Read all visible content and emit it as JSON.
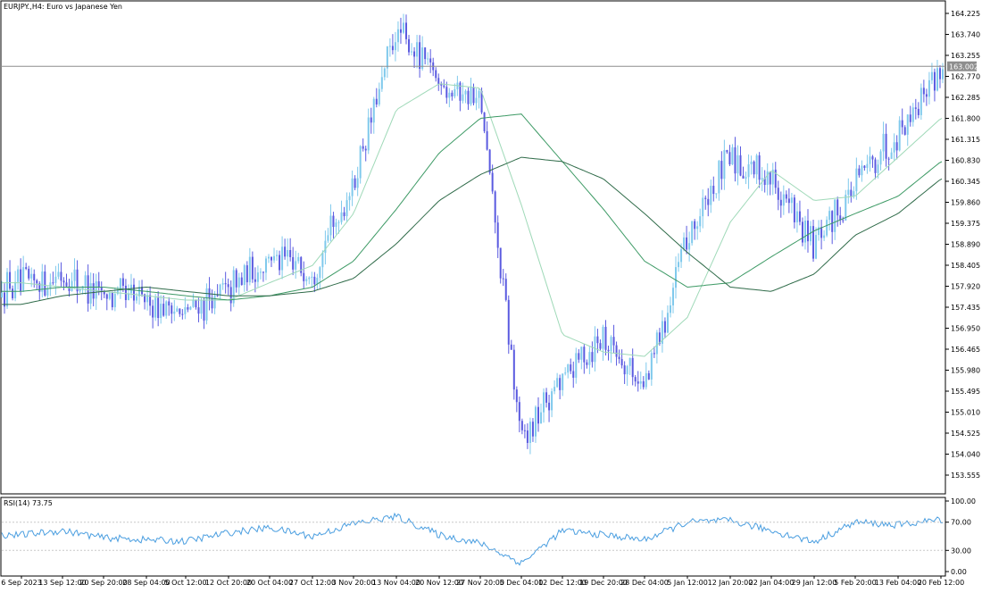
{
  "window": {
    "symbol_title": "EURJPY.,H4: Euro vs Japanese Yen"
  },
  "price_axis": {
    "labels": [
      "164.225",
      "163.740",
      "163.255",
      "162.770",
      "162.285",
      "161.800",
      "161.315",
      "160.830",
      "160.345",
      "159.860",
      "159.375",
      "158.890",
      "158.405",
      "157.920",
      "157.435",
      "156.950",
      "156.465",
      "155.980",
      "155.495",
      "155.010",
      "154.525",
      "154.040",
      "153.555"
    ],
    "current_price": "163.002"
  },
  "rsi_panel": {
    "title": "RSI(14) 73.75",
    "levels": [
      "100.00",
      "70.00",
      "30.00",
      "0.00"
    ]
  },
  "time_axis": {
    "labels": [
      "6 Sep 2023",
      "13 Sep 12:00",
      "20 Sep 20:00",
      "28 Sep 04:00",
      "5 Oct 12:00",
      "12 Oct 20:00",
      "20 Oct 04:00",
      "27 Oct 12:00",
      "3 Nov 20:00",
      "13 Nov 04:00",
      "20 Nov 12:00",
      "27 Nov 20:00",
      "5 Dec 04:00",
      "12 Dec 12:00",
      "19 Dec 20:00",
      "28 Dec 04:00",
      "5 Jan 12:00",
      "12 Jan 20:00",
      "22 Jan 04:00",
      "29 Jan 12:00",
      "5 Feb 20:00",
      "13 Feb 04:00",
      "20 Feb 12:00"
    ]
  },
  "chart_data": [
    {
      "type": "line",
      "title": "EURJPY.,H4: Euro vs Japanese Yen",
      "x": [
        "6 Sep 2023",
        "13 Sep 12:00",
        "20 Sep 20:00",
        "28 Sep 04:00",
        "5 Oct 12:00",
        "12 Oct 20:00",
        "20 Oct 04:00",
        "27 Oct 12:00",
        "3 Nov 20:00",
        "13 Nov 04:00",
        "20 Nov 12:00",
        "27 Nov 20:00",
        "5 Dec 04:00",
        "12 Dec 12:00",
        "19 Dec 20:00",
        "28 Dec 04:00",
        "5 Jan 12:00",
        "12 Jan 20:00",
        "22 Jan 04:00",
        "29 Jan 12:00",
        "5 Feb 20:00",
        "13 Feb 04:00",
        "20 Feb 12:00"
      ],
      "series": [
        {
          "values": [
            157.9,
            158.2,
            157.7,
            157.6,
            157.3,
            157.8,
            158.6,
            158.3,
            160.3,
            163.8,
            162.7,
            162.2,
            154.3,
            155.8,
            156.8,
            155.6,
            159.0,
            160.9,
            160.4,
            158.8,
            160.3,
            161.5,
            163.0
          ]
        },
        {
          "values": [
            158.0,
            157.9,
            157.8,
            157.7,
            157.6,
            157.6,
            158.0,
            158.4,
            159.6,
            162.0,
            162.6,
            162.5,
            159.8,
            156.8,
            156.4,
            156.3,
            157.2,
            159.4,
            160.6,
            159.9,
            160.0,
            160.9,
            161.8
          ]
        },
        {
          "values": [
            157.8,
            157.9,
            157.9,
            157.8,
            157.7,
            157.6,
            157.7,
            157.9,
            158.5,
            159.7,
            161.0,
            161.8,
            161.9,
            160.8,
            159.7,
            158.5,
            157.9,
            158.0,
            158.6,
            159.2,
            159.6,
            160.0,
            160.8
          ]
        },
        {
          "values": [
            157.5,
            157.7,
            157.8,
            157.9,
            157.8,
            157.7,
            157.7,
            157.8,
            158.1,
            158.9,
            159.9,
            160.5,
            160.9,
            160.8,
            160.4,
            159.6,
            158.7,
            157.9,
            157.8,
            158.2,
            159.1,
            159.6,
            160.4
          ]
        }
      ],
      "ylim": [
        153.2,
        164.5
      ]
    },
    {
      "type": "line",
      "title": "RSI(14) 73.75",
      "x": [
        "6 Sep 2023",
        "13 Sep 12:00",
        "20 Sep 20:00",
        "28 Sep 04:00",
        "5 Oct 12:00",
        "12 Oct 20:00",
        "20 Oct 04:00",
        "27 Oct 12:00",
        "3 Nov 20:00",
        "13 Nov 04:00",
        "20 Nov 12:00",
        "27 Nov 20:00",
        "5 Dec 04:00",
        "12 Dec 12:00",
        "19 Dec 20:00",
        "28 Dec 04:00",
        "5 Jan 12:00",
        "12 Jan 20:00",
        "22 Jan 04:00",
        "29 Jan 12:00",
        "5 Feb 20:00",
        "13 Feb 04:00",
        "20 Feb 12:00"
      ],
      "series": [
        {
          "values": [
            52,
            58,
            48,
            45,
            43,
            55,
            62,
            50,
            68,
            78,
            52,
            40,
            12,
            58,
            52,
            45,
            70,
            72,
            58,
            42,
            70,
            66,
            73.75
          ]
        }
      ],
      "ylim": [
        0,
        100
      ]
    }
  ],
  "colors": {
    "bull": "#7fc9ec",
    "bear": "#5a5ae0",
    "ma_fast": "#9fd9b8",
    "ma_mid": "#3d9a65",
    "ma_slow": "#2f6b49",
    "rsi": "#4a9ee0",
    "price_label_bg": "#8e8e8e"
  }
}
